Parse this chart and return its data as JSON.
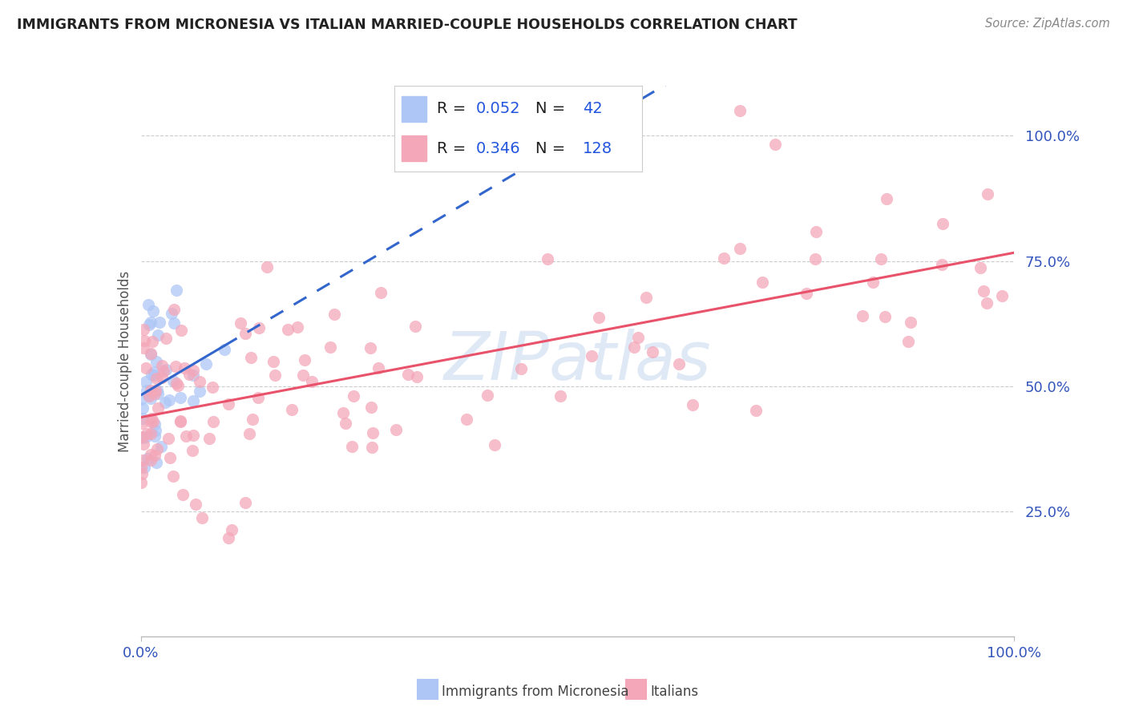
{
  "title": "IMMIGRANTS FROM MICRONESIA VS ITALIAN MARRIED-COUPLE HOUSEHOLDS CORRELATION CHART",
  "source": "Source: ZipAtlas.com",
  "ylabel": "Married-couple Households",
  "blue_color": "#aec6f6",
  "pink_color": "#f4a7b9",
  "blue_line_color": "#3366cc",
  "pink_line_color": "#e8526a",
  "blue_r": 0.052,
  "blue_n": 42,
  "pink_r": 0.346,
  "pink_n": 128,
  "watermark_color": "#c5d8f0",
  "grid_color": "#cccccc",
  "tick_color": "#3355bb",
  "title_color": "#222222",
  "source_color": "#888888",
  "ylabel_color": "#555555",
  "xlim": [
    0.0,
    1.0
  ],
  "ylim": [
    0.0,
    1.1
  ],
  "yticks": [
    0.25,
    0.5,
    0.75,
    1.0
  ],
  "ytick_labels": [
    "25.0%",
    "50.0%",
    "75.0%",
    "100.0%"
  ],
  "xtick_left": "0.0%",
  "xtick_right": "100.0%",
  "legend_r1": "0.052",
  "legend_n1": "42",
  "legend_r2": "0.346",
  "legend_n2": "128",
  "bottom_label1": "Immigrants from Micronesia",
  "bottom_label2": "Italians"
}
